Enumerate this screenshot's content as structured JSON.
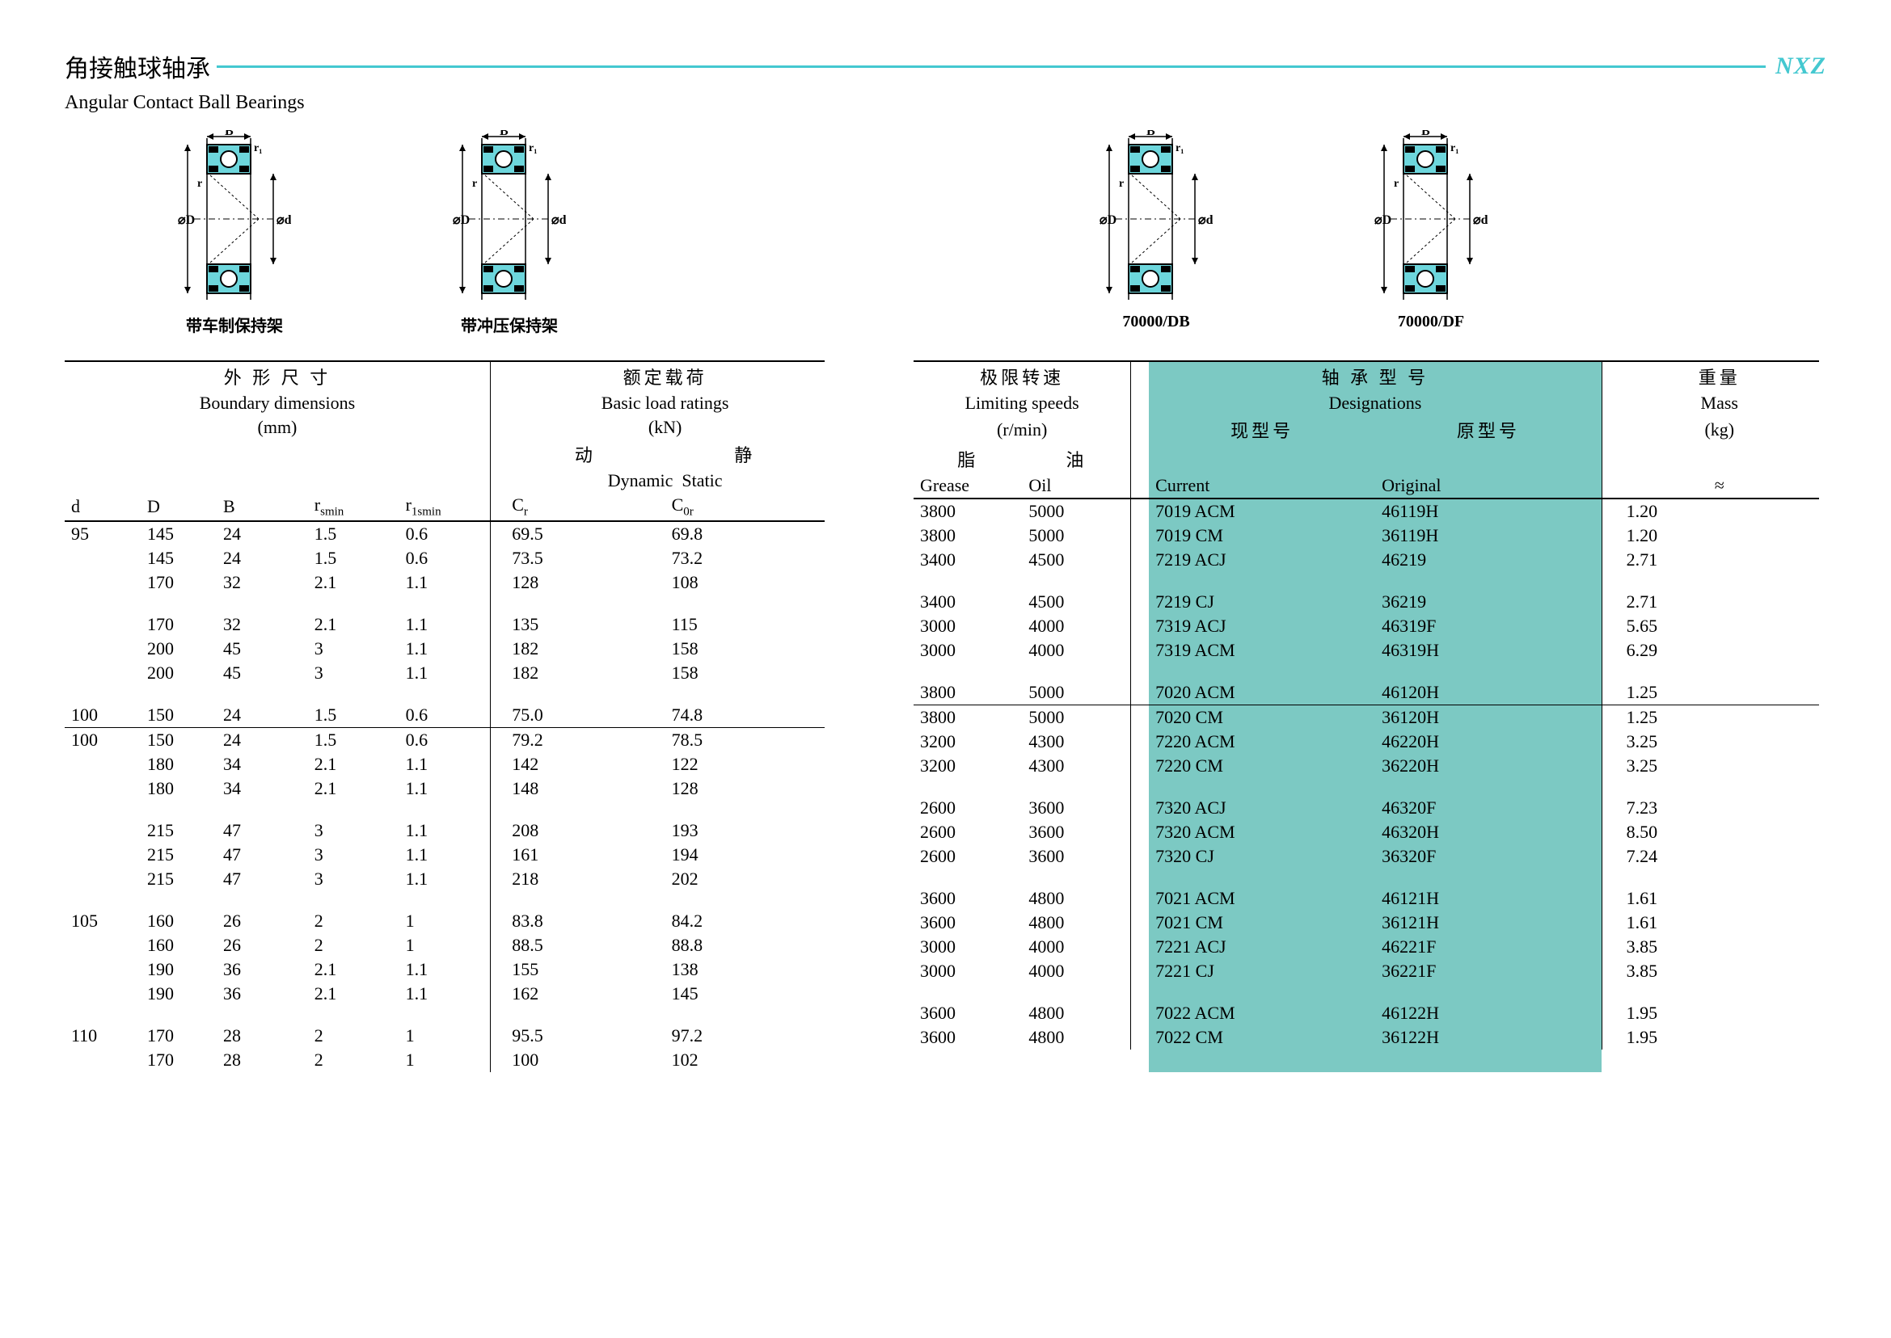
{
  "header": {
    "title_cn": "角接触球轴承",
    "subtitle_en": "Angular Contact Ball Bearings",
    "brand": "NXZ"
  },
  "diagrams": {
    "d1": "带车制保持架",
    "d2": "带冲压保持架",
    "d3": "70000/DB",
    "d4": "70000/DF"
  },
  "colors": {
    "accent": "#44c8d0",
    "highlight": "#7cc9c3",
    "bearing_fill": "#6dd6dc",
    "black": "#000000",
    "bg": "#ffffff"
  },
  "left_header": {
    "h1_cn": "外 形 尺 寸",
    "h1_en": "Boundary dimensions",
    "h1_unit": "(mm)",
    "h2_cn": "额定载荷",
    "h2_en": "Basic load ratings",
    "h2_unit": "(kN)",
    "dyn_cn": "动",
    "stat_cn": "静",
    "dyn_en": "Dynamic",
    "stat_en": "Static",
    "c_d": "d",
    "c_D": "D",
    "c_B": "B",
    "c_rs": "r",
    "c_rs_sub": "smin",
    "c_r1s": "r",
    "c_r1s_sub": "1smin",
    "c_Cr": "C",
    "c_Cr_sub": "r",
    "c_C0r": "C",
    "c_C0r_sub": "0r"
  },
  "right_header": {
    "h1_cn": "极限转速",
    "h1_en": "Limiting speeds",
    "h1_unit": "(r/min)",
    "h2_cn": "轴 承 型 号",
    "h2_en": "Designations",
    "h3_cn": "重量",
    "h3_en": "Mass",
    "h3_unit": "(kg)",
    "grease_cn": "脂",
    "oil_cn": "油",
    "grease_en": "Grease",
    "oil_en": "Oil",
    "cur_cn": "现型号",
    "orig_cn": "原型号",
    "cur_en": "Current",
    "orig_en": "Original",
    "approx": "≈"
  },
  "rows": [
    {
      "d": "95",
      "D": "145",
      "B": "24",
      "rs": "1.5",
      "r1s": "0.6",
      "Cr": "69.5",
      "C0r": "69.8",
      "grease": "3800",
      "oil": "5000",
      "cur": "7019 ACM",
      "orig": "46119H",
      "mass": "1.20",
      "line_after": false
    },
    {
      "d": "",
      "D": "145",
      "B": "24",
      "rs": "1.5",
      "r1s": "0.6",
      "Cr": "73.5",
      "C0r": "73.2",
      "grease": "3800",
      "oil": "5000",
      "cur": "7019 CM",
      "orig": "36119H",
      "mass": "1.20",
      "line_after": false
    },
    {
      "d": "",
      "D": "170",
      "B": "32",
      "rs": "2.1",
      "r1s": "1.1",
      "Cr": "128",
      "C0r": "108",
      "grease": "3400",
      "oil": "4500",
      "cur": "7219 ACJ",
      "orig": "46219",
      "mass": "2.71",
      "line_after": false,
      "gap_after": true
    },
    {
      "d": "",
      "D": "170",
      "B": "32",
      "rs": "2.1",
      "r1s": "1.1",
      "Cr": "135",
      "C0r": "115",
      "grease": "3400",
      "oil": "4500",
      "cur": "7219 CJ",
      "orig": "36219",
      "mass": "2.71",
      "line_after": false
    },
    {
      "d": "",
      "D": "200",
      "B": "45",
      "rs": "3",
      "r1s": "1.1",
      "Cr": "182",
      "C0r": "158",
      "grease": "3000",
      "oil": "4000",
      "cur": "7319 ACJ",
      "orig": "46319F",
      "mass": "5.65",
      "line_after": false
    },
    {
      "d": "",
      "D": "200",
      "B": "45",
      "rs": "3",
      "r1s": "1.1",
      "Cr": "182",
      "C0r": "158",
      "grease": "3000",
      "oil": "4000",
      "cur": "7319 ACM",
      "orig": "46319H",
      "mass": "6.29",
      "line_after": false,
      "gap_after": true
    },
    {
      "d": "100",
      "D": "150",
      "B": "24",
      "rs": "1.5",
      "r1s": "0.6",
      "Cr": "75.0",
      "C0r": "74.8",
      "grease": "3800",
      "oil": "5000",
      "cur": "7020 ACM",
      "orig": "46120H",
      "mass": "1.25",
      "line_after": true
    },
    {
      "d": "100",
      "D": "150",
      "B": "24",
      "rs": "1.5",
      "r1s": "0.6",
      "Cr": "79.2",
      "C0r": "78.5",
      "grease": "3800",
      "oil": "5000",
      "cur": "7020 CM",
      "orig": "36120H",
      "mass": "1.25",
      "line_after": false
    },
    {
      "d": "",
      "D": "180",
      "B": "34",
      "rs": "2.1",
      "r1s": "1.1",
      "Cr": "142",
      "C0r": "122",
      "grease": "3200",
      "oil": "4300",
      "cur": "7220 ACM",
      "orig": "46220H",
      "mass": "3.25",
      "line_after": false
    },
    {
      "d": "",
      "D": "180",
      "B": "34",
      "rs": "2.1",
      "r1s": "1.1",
      "Cr": "148",
      "C0r": "128",
      "grease": "3200",
      "oil": "4300",
      "cur": "7220 CM",
      "orig": "36220H",
      "mass": "3.25",
      "line_after": false,
      "gap_after": true
    },
    {
      "d": "",
      "D": "215",
      "B": "47",
      "rs": "3",
      "r1s": "1.1",
      "Cr": "208",
      "C0r": "193",
      "grease": "2600",
      "oil": "3600",
      "cur": "7320 ACJ",
      "orig": "46320F",
      "mass": "7.23",
      "line_after": false
    },
    {
      "d": "",
      "D": "215",
      "B": "47",
      "rs": "3",
      "r1s": "1.1",
      "Cr": "161",
      "C0r": "194",
      "grease": "2600",
      "oil": "3600",
      "cur": "7320 ACM",
      "orig": "46320H",
      "mass": "8.50",
      "line_after": false
    },
    {
      "d": "",
      "D": "215",
      "B": "47",
      "rs": "3",
      "r1s": "1.1",
      "Cr": "218",
      "C0r": "202",
      "grease": "2600",
      "oil": "3600",
      "cur": "7320 CJ",
      "orig": "36320F",
      "mass": "7.24",
      "line_after": false,
      "gap_after": true
    },
    {
      "d": "105",
      "D": "160",
      "B": "26",
      "rs": "2",
      "r1s": "1",
      "Cr": "83.8",
      "C0r": "84.2",
      "grease": "3600",
      "oil": "4800",
      "cur": "7021 ACM",
      "orig": "46121H",
      "mass": "1.61",
      "line_after": false
    },
    {
      "d": "",
      "D": "160",
      "B": "26",
      "rs": "2",
      "r1s": "1",
      "Cr": "88.5",
      "C0r": "88.8",
      "grease": "3600",
      "oil": "4800",
      "cur": "7021 CM",
      "orig": "36121H",
      "mass": "1.61",
      "line_after": false
    },
    {
      "d": "",
      "D": "190",
      "B": "36",
      "rs": "2.1",
      "r1s": "1.1",
      "Cr": "155",
      "C0r": "138",
      "grease": "3000",
      "oil": "4000",
      "cur": "7221 ACJ",
      "orig": "46221F",
      "mass": "3.85",
      "line_after": false
    },
    {
      "d": "",
      "D": "190",
      "B": "36",
      "rs": "2.1",
      "r1s": "1.1",
      "Cr": "162",
      "C0r": "145",
      "grease": "3000",
      "oil": "4000",
      "cur": "7221 CJ",
      "orig": "36221F",
      "mass": "3.85",
      "line_after": false,
      "gap_after": true
    },
    {
      "d": "110",
      "D": "170",
      "B": "28",
      "rs": "2",
      "r1s": "1",
      "Cr": "95.5",
      "C0r": "97.2",
      "grease": "3600",
      "oil": "4800",
      "cur": "7022 ACM",
      "orig": "46122H",
      "mass": "1.95",
      "line_after": false
    },
    {
      "d": "",
      "D": "170",
      "B": "28",
      "rs": "2",
      "r1s": "1",
      "Cr": "100",
      "C0r": "102",
      "grease": "3600",
      "oil": "4800",
      "cur": "7022 CM",
      "orig": "36122H",
      "mass": "1.95",
      "line_after": false
    }
  ],
  "col_widths": {
    "left": [
      "10%",
      "10%",
      "12%",
      "12%",
      "12%",
      "2%",
      "21%",
      "21%"
    ],
    "right": [
      "12%",
      "12%",
      "2%",
      "25%",
      "25%",
      "2%",
      "22%"
    ]
  },
  "highlight_right": {
    "left_pct": 26,
    "width_pct": 50
  }
}
